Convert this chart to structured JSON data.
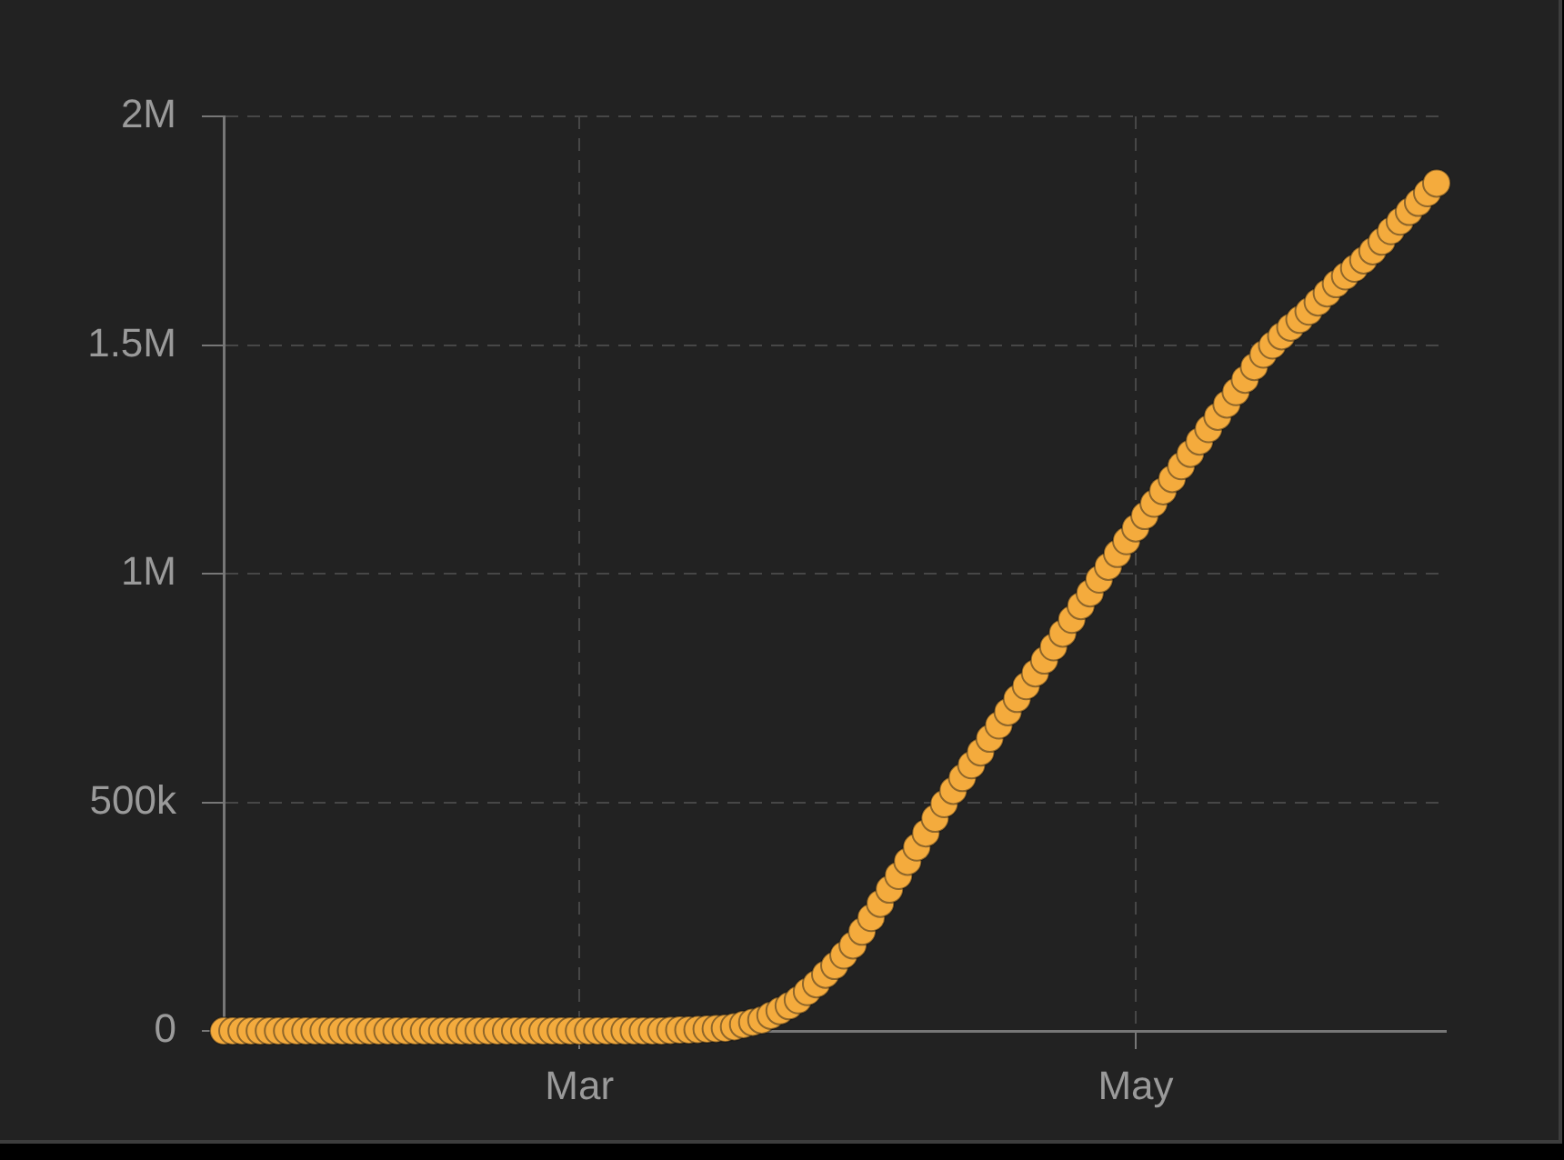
{
  "chart_data": {
    "type": "scatter",
    "marker": "circle",
    "color": "#f4ab3d",
    "grid": true,
    "xlim": [
      "--01-22",
      "--06-04"
    ],
    "xticks": [
      {
        "value": "--03-01",
        "label": "Mar"
      },
      {
        "value": "--05-01",
        "label": "May"
      }
    ],
    "ylim": [
      0,
      2000000
    ],
    "yticks": [
      0,
      {
        "value": 500000,
        "label": "500k"
      },
      {
        "value": 1000000,
        "label": "1M"
      },
      {
        "value": 1500000,
        "label": "1.5M"
      },
      {
        "value": 2000000,
        "label": "2M"
      }
    ],
    "x": [
      "--01-22",
      "--01-23",
      "--01-24",
      "--01-25",
      "--01-26",
      "--01-27",
      "--01-28",
      "--01-29",
      "--01-30",
      "--01-31",
      "--02-01",
      "--02-02",
      "--02-03",
      "--02-04",
      "--02-05",
      "--02-06",
      "--02-07",
      "--02-08",
      "--02-09",
      "--02-10",
      "--02-11",
      "--02-12",
      "--02-13",
      "--02-14",
      "--02-15",
      "--02-16",
      "--02-17",
      "--02-18",
      "--02-19",
      "--02-20",
      "--02-21",
      "--02-22",
      "--02-23",
      "--02-24",
      "--02-25",
      "--02-26",
      "--02-27",
      "--02-28",
      "--02-29",
      "--03-01",
      "--03-02",
      "--03-03",
      "--03-04",
      "--03-05",
      "--03-06",
      "--03-07",
      "--03-08",
      "--03-09",
      "--03-10",
      "--03-11",
      "--03-12",
      "--03-13",
      "--03-14",
      "--03-15",
      "--03-16",
      "--03-17",
      "--03-18",
      "--03-19",
      "--03-20",
      "--03-21",
      "--03-22",
      "--03-23",
      "--03-24",
      "--03-25",
      "--03-26",
      "--03-27",
      "--03-28",
      "--03-29",
      "--03-30",
      "--03-31",
      "--04-01",
      "--04-02",
      "--04-03",
      "--04-04",
      "--04-05",
      "--04-06",
      "--04-07",
      "--04-08",
      "--04-09",
      "--04-10",
      "--04-11",
      "--04-12",
      "--04-13",
      "--04-14",
      "--04-15",
      "--04-16",
      "--04-17",
      "--04-18",
      "--04-19",
      "--04-20",
      "--04-21",
      "--04-22",
      "--04-23",
      "--04-24",
      "--04-25",
      "--04-26",
      "--04-27",
      "--04-28",
      "--04-29",
      "--04-30",
      "--05-01",
      "--05-02",
      "--05-03",
      "--05-04",
      "--05-05",
      "--05-06",
      "--05-07",
      "--05-08",
      "--05-09",
      "--05-10",
      "--05-11",
      "--05-12",
      "--05-13",
      "--05-14",
      "--05-15",
      "--05-16",
      "--05-17",
      "--05-18",
      "--05-19",
      "--05-20",
      "--05-21",
      "--05-22",
      "--05-23",
      "--05-24",
      "--05-25",
      "--05-26",
      "--05-27",
      "--05-28",
      "--05-29",
      "--05-30",
      "--05-31",
      "--06-01",
      "--06-02",
      "--06-03"
    ],
    "values": [
      0,
      0,
      0,
      0,
      0,
      0,
      0,
      0,
      0,
      0,
      0,
      0,
      0,
      0,
      0,
      0,
      0,
      0,
      0,
      0,
      0,
      0,
      0,
      0,
      0,
      0,
      0,
      0,
      0,
      0,
      0,
      0,
      0,
      0,
      0,
      0,
      0,
      0,
      0,
      0,
      0,
      0,
      0,
      0,
      0,
      0,
      0,
      0,
      0,
      1000,
      2000,
      2000,
      3000,
      4000,
      5000,
      6000,
      9000,
      14000,
      19000,
      24000,
      34000,
      44000,
      55000,
      68000,
      86000,
      103000,
      124000,
      143000,
      166000,
      188000,
      218000,
      248000,
      279000,
      310000,
      340000,
      371000,
      402000,
      433000,
      465000,
      497000,
      526000,
      554000,
      582000,
      610000,
      640000,
      669000,
      698000,
      727000,
      755000,
      783000,
      811000,
      840000,
      870000,
      900000,
      930000,
      958000,
      988000,
      1016000,
      1044000,
      1072000,
      1100000,
      1127000,
      1154000,
      1181000,
      1208000,
      1236000,
      1263000,
      1290000,
      1317000,
      1344000,
      1371000,
      1398000,
      1425000,
      1453000,
      1480000,
      1500000,
      1520000,
      1539000,
      1556000,
      1574000,
      1594000,
      1614000,
      1634000,
      1651000,
      1668000,
      1686000,
      1706000,
      1727000,
      1750000,
      1771000,
      1792000,
      1812000,
      1833000,
      1854000
    ]
  }
}
